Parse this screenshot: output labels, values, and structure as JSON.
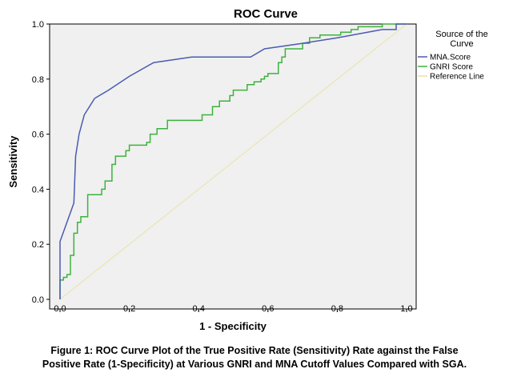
{
  "chart_data": {
    "type": "line",
    "title": "ROC Curve",
    "xlabel": "1 - Specificity",
    "ylabel": "Sensitivity",
    "xlim": [
      0,
      1
    ],
    "ylim": [
      0,
      1
    ],
    "x_ticks": [
      "0.0",
      "0.2",
      "0.4",
      "0.6",
      "0.8",
      "1.0"
    ],
    "y_ticks": [
      "0.0",
      "0.2",
      "0.4",
      "0.6",
      "0.8",
      "1.0"
    ],
    "grid": false,
    "legend_title_lines": [
      "Source of the",
      "Curve"
    ],
    "legend_position": "right",
    "series": [
      {
        "name": "MNA.Score",
        "color": "#4a5bb0",
        "points": [
          [
            0,
            0
          ],
          [
            0,
            0.21
          ],
          [
            0.04,
            0.35
          ],
          [
            0.045,
            0.52
          ],
          [
            0.055,
            0.6
          ],
          [
            0.07,
            0.67
          ],
          [
            0.1,
            0.73
          ],
          [
            0.14,
            0.76
          ],
          [
            0.2,
            0.81
          ],
          [
            0.27,
            0.86
          ],
          [
            0.38,
            0.88
          ],
          [
            0.55,
            0.88
          ],
          [
            0.59,
            0.91
          ],
          [
            0.7,
            0.93
          ],
          [
            0.8,
            0.95
          ],
          [
            0.93,
            0.98
          ],
          [
            0.97,
            0.98
          ],
          [
            0.97,
            1.0
          ],
          [
            1,
            1
          ]
        ]
      },
      {
        "name": "GNRI Score",
        "color": "#3db23d",
        "points": [
          [
            0,
            0
          ],
          [
            0,
            0.07
          ],
          [
            0.01,
            0.07
          ],
          [
            0.01,
            0.08
          ],
          [
            0.02,
            0.08
          ],
          [
            0.02,
            0.09
          ],
          [
            0.03,
            0.09
          ],
          [
            0.03,
            0.16
          ],
          [
            0.04,
            0.16
          ],
          [
            0.04,
            0.24
          ],
          [
            0.05,
            0.24
          ],
          [
            0.05,
            0.28
          ],
          [
            0.06,
            0.28
          ],
          [
            0.06,
            0.3
          ],
          [
            0.08,
            0.3
          ],
          [
            0.08,
            0.38
          ],
          [
            0.12,
            0.38
          ],
          [
            0.12,
            0.4
          ],
          [
            0.13,
            0.4
          ],
          [
            0.13,
            0.43
          ],
          [
            0.15,
            0.43
          ],
          [
            0.15,
            0.49
          ],
          [
            0.16,
            0.49
          ],
          [
            0.16,
            0.52
          ],
          [
            0.19,
            0.52
          ],
          [
            0.19,
            0.54
          ],
          [
            0.2,
            0.54
          ],
          [
            0.2,
            0.56
          ],
          [
            0.25,
            0.56
          ],
          [
            0.25,
            0.57
          ],
          [
            0.26,
            0.57
          ],
          [
            0.26,
            0.6
          ],
          [
            0.28,
            0.6
          ],
          [
            0.28,
            0.62
          ],
          [
            0.31,
            0.62
          ],
          [
            0.31,
            0.65
          ],
          [
            0.41,
            0.65
          ],
          [
            0.41,
            0.67
          ],
          [
            0.44,
            0.67
          ],
          [
            0.44,
            0.7
          ],
          [
            0.46,
            0.7
          ],
          [
            0.46,
            0.72
          ],
          [
            0.49,
            0.72
          ],
          [
            0.49,
            0.74
          ],
          [
            0.5,
            0.74
          ],
          [
            0.5,
            0.76
          ],
          [
            0.54,
            0.76
          ],
          [
            0.54,
            0.78
          ],
          [
            0.56,
            0.78
          ],
          [
            0.56,
            0.79
          ],
          [
            0.58,
            0.79
          ],
          [
            0.58,
            0.8
          ],
          [
            0.59,
            0.8
          ],
          [
            0.59,
            0.81
          ],
          [
            0.6,
            0.81
          ],
          [
            0.6,
            0.82
          ],
          [
            0.63,
            0.82
          ],
          [
            0.63,
            0.86
          ],
          [
            0.64,
            0.86
          ],
          [
            0.64,
            0.88
          ],
          [
            0.65,
            0.88
          ],
          [
            0.65,
            0.91
          ],
          [
            0.7,
            0.91
          ],
          [
            0.7,
            0.93
          ],
          [
            0.72,
            0.93
          ],
          [
            0.72,
            0.95
          ],
          [
            0.75,
            0.95
          ],
          [
            0.75,
            0.96
          ],
          [
            0.81,
            0.96
          ],
          [
            0.81,
            0.97
          ],
          [
            0.84,
            0.97
          ],
          [
            0.84,
            0.98
          ],
          [
            0.86,
            0.98
          ],
          [
            0.86,
            0.99
          ],
          [
            0.93,
            0.99
          ],
          [
            0.93,
            1.0
          ],
          [
            1,
            1
          ]
        ]
      },
      {
        "name": "Reference Line",
        "color": "#e8e3a6",
        "points": [
          [
            0,
            0
          ],
          [
            1,
            1
          ]
        ]
      }
    ]
  },
  "caption": {
    "line1": "Figure 1: ROC Curve Plot of the True Positive Rate (Sensitivity) Rate against the False",
    "line2": "Positive Rate (1-Specificity) at Various GNRI and MNA Cutoff Values Compared with SGA."
  }
}
